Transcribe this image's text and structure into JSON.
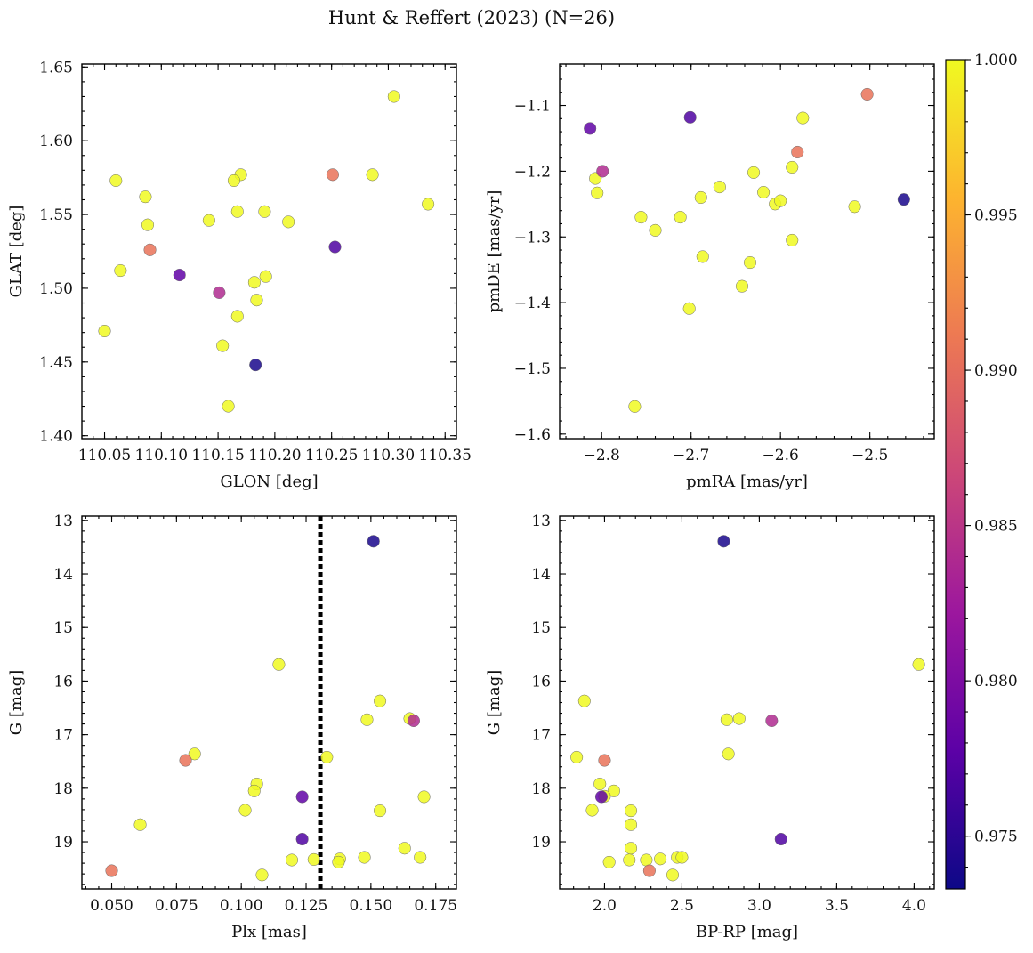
{
  "suptitle": "Hunt & Reffert (2023) (N=26)",
  "colorbar": {
    "min": 0.9733,
    "max": 1.0,
    "ticks": [
      0.975,
      0.98,
      0.985,
      0.99,
      0.995,
      1.0
    ],
    "tick_labels": [
      "0.975",
      "0.980",
      "0.985",
      "0.990",
      "0.995",
      "1.000"
    ],
    "colormap": "plasma",
    "stops": [
      "#0d0887",
      "#5c01a6",
      "#9c179e",
      "#cc4778",
      "#ed7953",
      "#fdb42f",
      "#f0f921"
    ]
  },
  "chart_data": [
    {
      "id": "glon-glat",
      "type": "scatter",
      "xlabel": "GLON [deg]",
      "ylabel": "GLAT [deg]",
      "xlim": [
        110.03,
        110.36
      ],
      "ylim": [
        1.398,
        1.652
      ],
      "inverted_y": false,
      "xticks": [
        110.05,
        110.1,
        110.15,
        110.2,
        110.25,
        110.3,
        110.35
      ],
      "xtick_labels": [
        "110.05",
        "110.10",
        "110.15",
        "110.20",
        "110.25",
        "110.30",
        "110.35"
      ],
      "yticks": [
        1.4,
        1.45,
        1.5,
        1.55,
        1.6,
        1.65
      ],
      "ytick_labels": [
        "1.40",
        "1.45",
        "1.50",
        "1.55",
        "1.60",
        "1.65"
      ],
      "x_minor": 0.01,
      "y_minor": 0.01,
      "points": [
        {
          "x": 110.305,
          "y": 1.63,
          "c": 1.0
        },
        {
          "x": 110.06,
          "y": 1.573,
          "c": 1.0
        },
        {
          "x": 110.086,
          "y": 1.562,
          "c": 1.0
        },
        {
          "x": 110.088,
          "y": 1.543,
          "c": 1.0
        },
        {
          "x": 110.064,
          "y": 1.512,
          "c": 1.0
        },
        {
          "x": 110.05,
          "y": 1.471,
          "c": 1.0
        },
        {
          "x": 110.17,
          "y": 1.577,
          "c": 1.0
        },
        {
          "x": 110.164,
          "y": 1.573,
          "c": 1.0
        },
        {
          "x": 110.167,
          "y": 1.552,
          "c": 1.0
        },
        {
          "x": 110.142,
          "y": 1.546,
          "c": 1.0
        },
        {
          "x": 110.191,
          "y": 1.552,
          "c": 1.0
        },
        {
          "x": 110.212,
          "y": 1.545,
          "c": 1.0
        },
        {
          "x": 110.286,
          "y": 1.577,
          "c": 1.0
        },
        {
          "x": 110.335,
          "y": 1.557,
          "c": 1.0
        },
        {
          "x": 110.192,
          "y": 1.508,
          "c": 1.0
        },
        {
          "x": 110.182,
          "y": 1.504,
          "c": 1.0
        },
        {
          "x": 110.184,
          "y": 1.492,
          "c": 1.0
        },
        {
          "x": 110.167,
          "y": 1.481,
          "c": 1.0
        },
        {
          "x": 110.154,
          "y": 1.461,
          "c": 1.0
        },
        {
          "x": 110.159,
          "y": 1.42,
          "c": 1.0
        },
        {
          "x": 110.09,
          "y": 1.526,
          "c": 0.9905
        },
        {
          "x": 110.251,
          "y": 1.577,
          "c": 0.9905
        },
        {
          "x": 110.151,
          "y": 1.497,
          "c": 0.984
        },
        {
          "x": 110.116,
          "y": 1.509,
          "c": 0.978
        },
        {
          "x": 110.253,
          "y": 1.528,
          "c": 0.977
        },
        {
          "x": 110.183,
          "y": 1.448,
          "c": 0.974
        }
      ]
    },
    {
      "id": "pmra-pmde",
      "type": "scatter",
      "xlabel": "pmRA [mas/yr]",
      "ylabel": "pmDE [mas/yr]",
      "xlim": [
        -2.847,
        -2.428
      ],
      "ylim": [
        -1.607,
        -1.037
      ],
      "inverted_y": false,
      "xticks": [
        -2.8,
        -2.7,
        -2.6,
        -2.5
      ],
      "xtick_labels": [
        "−2.8",
        "−2.7",
        "−2.6",
        "−2.5"
      ],
      "yticks": [
        -1.6,
        -1.5,
        -1.4,
        -1.3,
        -1.2,
        -1.1
      ],
      "ytick_labels": [
        "−1.6",
        "−1.5",
        "−1.4",
        "−1.3",
        "−1.2",
        "−1.1"
      ],
      "x_minor": 0.02,
      "y_minor": 0.02,
      "points": [
        {
          "x": -2.807,
          "y": -1.211,
          "c": 1.0
        },
        {
          "x": -2.805,
          "y": -1.233,
          "c": 1.0
        },
        {
          "x": -2.756,
          "y": -1.27,
          "c": 1.0
        },
        {
          "x": -2.74,
          "y": -1.29,
          "c": 1.0
        },
        {
          "x": -2.712,
          "y": -1.27,
          "c": 1.0
        },
        {
          "x": -2.689,
          "y": -1.24,
          "c": 1.0
        },
        {
          "x": -2.668,
          "y": -1.224,
          "c": 1.0
        },
        {
          "x": -2.63,
          "y": -1.202,
          "c": 1.0
        },
        {
          "x": -2.619,
          "y": -1.232,
          "c": 1.0
        },
        {
          "x": -2.606,
          "y": -1.25,
          "c": 1.0
        },
        {
          "x": -2.6,
          "y": -1.245,
          "c": 1.0
        },
        {
          "x": -2.587,
          "y": -1.194,
          "c": 1.0
        },
        {
          "x": -2.575,
          "y": -1.119,
          "c": 1.0
        },
        {
          "x": -2.517,
          "y": -1.254,
          "c": 1.0
        },
        {
          "x": -2.687,
          "y": -1.33,
          "c": 1.0
        },
        {
          "x": -2.634,
          "y": -1.339,
          "c": 1.0
        },
        {
          "x": -2.643,
          "y": -1.375,
          "c": 1.0
        },
        {
          "x": -2.587,
          "y": -1.305,
          "c": 1.0
        },
        {
          "x": -2.702,
          "y": -1.409,
          "c": 1.0
        },
        {
          "x": -2.763,
          "y": -1.558,
          "c": 1.0
        },
        {
          "x": -2.503,
          "y": -1.083,
          "c": 0.9905
        },
        {
          "x": -2.581,
          "y": -1.171,
          "c": 0.9905
        },
        {
          "x": -2.799,
          "y": -1.2,
          "c": 0.984
        },
        {
          "x": -2.813,
          "y": -1.135,
          "c": 0.978
        },
        {
          "x": -2.701,
          "y": -1.118,
          "c": 0.977
        },
        {
          "x": -2.462,
          "y": -1.243,
          "c": 0.974
        }
      ]
    },
    {
      "id": "plx-g",
      "type": "scatter",
      "xlabel": "Plx [mas]",
      "ylabel": "G [mag]",
      "xlim": [
        0.0385,
        0.183
      ],
      "ylim": [
        12.92,
        19.88
      ],
      "inverted_y": true,
      "vline": 0.1305,
      "xticks": [
        0.05,
        0.075,
        0.1,
        0.125,
        0.15,
        0.175
      ],
      "xtick_labels": [
        "0.050",
        "0.075",
        "0.100",
        "0.125",
        "0.150",
        "0.175"
      ],
      "yticks": [
        13,
        14,
        15,
        16,
        17,
        18,
        19
      ],
      "ytick_labels": [
        "13",
        "14",
        "15",
        "16",
        "17",
        "18",
        "19"
      ],
      "x_minor": 0.005,
      "y_minor": 0.2,
      "points": [
        {
          "x": 0.1145,
          "y": 15.69,
          "c": 1.0
        },
        {
          "x": 0.1535,
          "y": 16.37,
          "c": 1.0
        },
        {
          "x": 0.1485,
          "y": 16.72,
          "c": 1.0
        },
        {
          "x": 0.165,
          "y": 16.7,
          "c": 1.0
        },
        {
          "x": 0.082,
          "y": 17.36,
          "c": 1.0
        },
        {
          "x": 0.133,
          "y": 17.42,
          "c": 1.0
        },
        {
          "x": 0.106,
          "y": 17.92,
          "c": 1.0
        },
        {
          "x": 0.105,
          "y": 18.05,
          "c": 1.0
        },
        {
          "x": 0.1015,
          "y": 18.41,
          "c": 1.0
        },
        {
          "x": 0.1535,
          "y": 18.42,
          "c": 1.0
        },
        {
          "x": 0.1705,
          "y": 18.16,
          "c": 1.0
        },
        {
          "x": 0.061,
          "y": 18.68,
          "c": 1.0
        },
        {
          "x": 0.163,
          "y": 19.12,
          "c": 1.0
        },
        {
          "x": 0.169,
          "y": 19.29,
          "c": 1.0
        },
        {
          "x": 0.1475,
          "y": 19.29,
          "c": 1.0
        },
        {
          "x": 0.138,
          "y": 19.32,
          "c": 1.0
        },
        {
          "x": 0.1375,
          "y": 19.38,
          "c": 1.0
        },
        {
          "x": 0.128,
          "y": 19.33,
          "c": 1.0
        },
        {
          "x": 0.1195,
          "y": 19.34,
          "c": 1.0
        },
        {
          "x": 0.108,
          "y": 19.62,
          "c": 1.0
        },
        {
          "x": 0.05,
          "y": 19.54,
          "c": 0.9905
        },
        {
          "x": 0.0785,
          "y": 17.48,
          "c": 0.9905
        },
        {
          "x": 0.1665,
          "y": 16.74,
          "c": 0.984
        },
        {
          "x": 0.1235,
          "y": 18.16,
          "c": 0.978
        },
        {
          "x": 0.1235,
          "y": 18.95,
          "c": 0.977
        },
        {
          "x": 0.151,
          "y": 13.39,
          "c": 0.974
        }
      ]
    },
    {
      "id": "bprp-g",
      "type": "scatter",
      "xlabel": "BP-RP [mag]",
      "ylabel": "G [mag]",
      "xlim": [
        1.71,
        4.13
      ],
      "ylim": [
        12.92,
        19.88
      ],
      "inverted_y": true,
      "xticks": [
        2.0,
        2.5,
        3.0,
        3.5,
        4.0
      ],
      "xtick_labels": [
        "2.0",
        "2.5",
        "3.0",
        "3.5",
        "4.0"
      ],
      "yticks": [
        13,
        14,
        15,
        16,
        17,
        18,
        19
      ],
      "ytick_labels": [
        "13",
        "14",
        "15",
        "16",
        "17",
        "18",
        "19"
      ],
      "x_minor": 0.1,
      "y_minor": 0.2,
      "points": [
        {
          "x": 4.03,
          "y": 15.69,
          "c": 1.0
        },
        {
          "x": 1.87,
          "y": 16.37,
          "c": 1.0
        },
        {
          "x": 2.79,
          "y": 16.72,
          "c": 1.0
        },
        {
          "x": 2.87,
          "y": 16.7,
          "c": 1.0
        },
        {
          "x": 2.8,
          "y": 17.36,
          "c": 1.0
        },
        {
          "x": 1.82,
          "y": 17.42,
          "c": 1.0
        },
        {
          "x": 1.97,
          "y": 17.92,
          "c": 1.0
        },
        {
          "x": 2.06,
          "y": 18.05,
          "c": 1.0
        },
        {
          "x": 2.0,
          "y": 18.15,
          "c": 1.0
        },
        {
          "x": 1.92,
          "y": 18.41,
          "c": 1.0
        },
        {
          "x": 2.17,
          "y": 18.42,
          "c": 1.0
        },
        {
          "x": 2.17,
          "y": 18.68,
          "c": 1.0
        },
        {
          "x": 2.17,
          "y": 19.12,
          "c": 1.0
        },
        {
          "x": 2.03,
          "y": 19.38,
          "c": 1.0
        },
        {
          "x": 2.16,
          "y": 19.34,
          "c": 1.0
        },
        {
          "x": 2.27,
          "y": 19.34,
          "c": 1.0
        },
        {
          "x": 2.36,
          "y": 19.32,
          "c": 1.0
        },
        {
          "x": 2.47,
          "y": 19.29,
          "c": 1.0
        },
        {
          "x": 2.5,
          "y": 19.29,
          "c": 1.0
        },
        {
          "x": 2.44,
          "y": 19.62,
          "c": 1.0
        },
        {
          "x": 2.29,
          "y": 19.54,
          "c": 0.9905
        },
        {
          "x": 2.0,
          "y": 17.48,
          "c": 0.9905
        },
        {
          "x": 3.08,
          "y": 16.74,
          "c": 0.984
        },
        {
          "x": 1.98,
          "y": 18.16,
          "c": 0.978
        },
        {
          "x": 3.14,
          "y": 18.95,
          "c": 0.977
        },
        {
          "x": 2.77,
          "y": 13.39,
          "c": 0.974
        }
      ]
    }
  ]
}
